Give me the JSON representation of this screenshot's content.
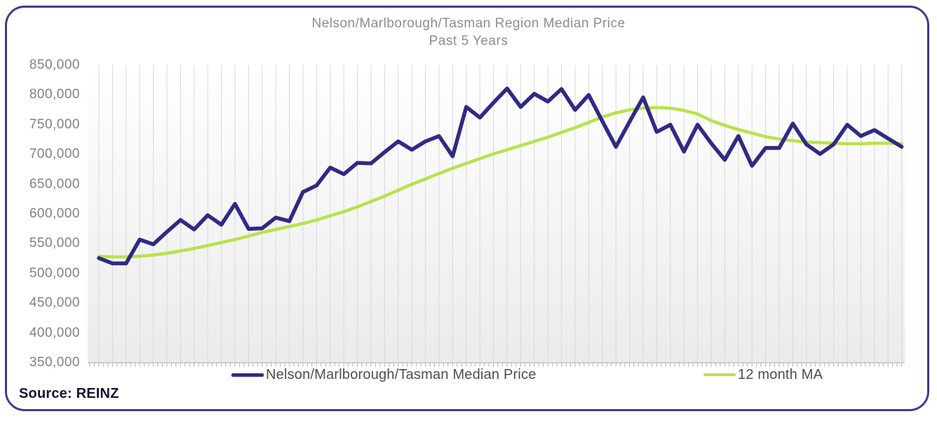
{
  "title": {
    "line1": "Nelson/Marlborough/Tasman Region Median Price",
    "line2": "Past 5 Years"
  },
  "source_text": "Source: REINZ",
  "legend": [
    {
      "label": "Nelson/Marlborough/Tasman Median Price",
      "color": "#312a83"
    },
    {
      "label": "12 month MA",
      "color": "#b9e14d"
    }
  ],
  "colors": {
    "card_border": "#433a8c",
    "median_line": "#312a83",
    "ma_line": "#b9e14d",
    "gridline": "#d9d9d9",
    "axis": "#c4c4c4",
    "tick": "#b5b5b5",
    "title_text": "#8d8d8d",
    "axis_label_text": "#808080",
    "legend_text": "#4d4d4d",
    "plot_bg_top": "#ffffff",
    "plot_bg_bottom": "#ebebeb"
  },
  "chart_data": {
    "type": "line",
    "title": "Nelson/Marlborough/Tasman Region Median Price",
    "subtitle": "Past 5 Years",
    "xlabel": "",
    "ylabel": "",
    "x_description": "60 monthly points spanning 5 years (no x tick labels shown)",
    "ylim": [
      350000,
      850000
    ],
    "y_ticks": [
      850000,
      800000,
      750000,
      700000,
      650000,
      600000,
      550000,
      500000,
      450000,
      400000,
      350000
    ],
    "grid": "vertical gridline per monthly point; minor ticks below axis",
    "legend_position": "bottom",
    "series": [
      {
        "name": "Nelson/Marlborough/Tasman Median Price",
        "color": "#312a83",
        "values": [
          526000,
          517000,
          517000,
          557000,
          549000,
          570000,
          590000,
          574000,
          598000,
          582000,
          617000,
          575000,
          576000,
          594000,
          588000,
          637000,
          648000,
          678000,
          667000,
          686000,
          685000,
          704000,
          722000,
          708000,
          722000,
          731000,
          697000,
          780000,
          762000,
          787000,
          811000,
          780000,
          802000,
          789000,
          810000,
          775000,
          800000,
          756000,
          713000,
          755000,
          796000,
          738000,
          750000,
          705000,
          750000,
          719000,
          691000,
          731000,
          681000,
          711000,
          711000,
          752000,
          717000,
          701000,
          717000,
          750000,
          731000,
          741000,
          727000,
          713000
        ]
      },
      {
        "name": "12 month MA",
        "color": "#b9e14d",
        "values": [
          529000,
          528000,
          528000,
          529000,
          531000,
          534000,
          538000,
          542000,
          547000,
          552000,
          557000,
          563000,
          569000,
          574000,
          579000,
          584000,
          590000,
          597000,
          604000,
          612000,
          621000,
          630000,
          640000,
          650000,
          659000,
          668000,
          677000,
          685000,
          693000,
          701000,
          708000,
          715000,
          722000,
          729000,
          737000,
          745000,
          754000,
          763000,
          770000,
          775000,
          778000,
          779000,
          778000,
          774000,
          768000,
          757000,
          749000,
          742000,
          736000,
          730000,
          726000,
          723000,
          721000,
          720000,
          719000,
          718000,
          718000,
          719000,
          719000,
          718000
        ]
      }
    ]
  }
}
